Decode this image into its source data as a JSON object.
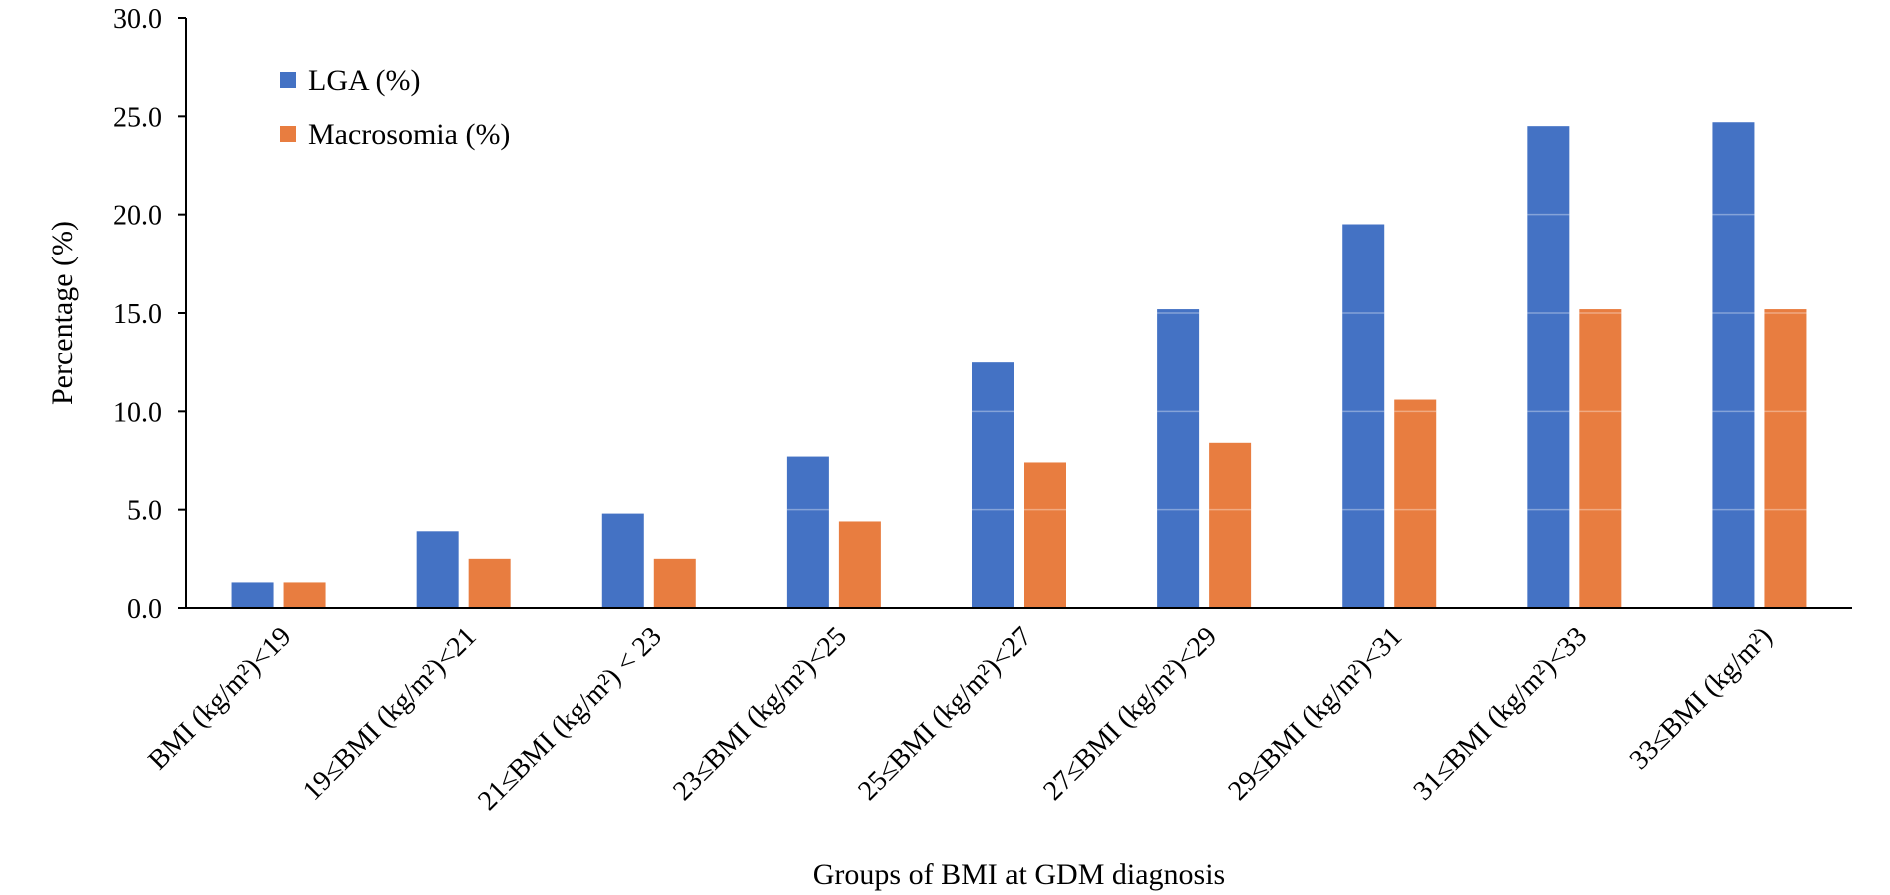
{
  "chart_data": {
    "type": "bar",
    "title": "",
    "xlabel": "Groups of BMI at GDM diagnosis",
    "ylabel": "Percentage (%)",
    "ylim": [
      0,
      30
    ],
    "yticks": [
      "0.0",
      "5.0",
      "10.0",
      "15.0",
      "20.0",
      "25.0",
      "30.0"
    ],
    "grid": "horizontal gridlines faint white over bars",
    "legend_position": "top-left",
    "categories": [
      "BMI (kg/m²)<19",
      "19≤BMI (kg/m²)<21",
      "21≤BMI (kg/m²) < 23",
      "23≤BMI (kg/m²)<25",
      "25≤BMI (kg/m²)<27",
      "27≤BMI (kg/m²)<29",
      "29≤BMI (kg/m²)<31",
      "31≤BMI (kg/m²)<33",
      "33≤BMI (kg/m²)"
    ],
    "series": [
      {
        "name": "LGA (%)",
        "color": "#4472C4",
        "values": [
          1.3,
          3.9,
          4.8,
          7.7,
          12.5,
          15.2,
          19.5,
          24.5,
          24.7
        ]
      },
      {
        "name": "Macrosomia (%)",
        "color": "#E87D40",
        "values": [
          1.3,
          2.5,
          2.5,
          4.4,
          7.4,
          8.4,
          10.6,
          15.2,
          15.2
        ]
      }
    ]
  }
}
